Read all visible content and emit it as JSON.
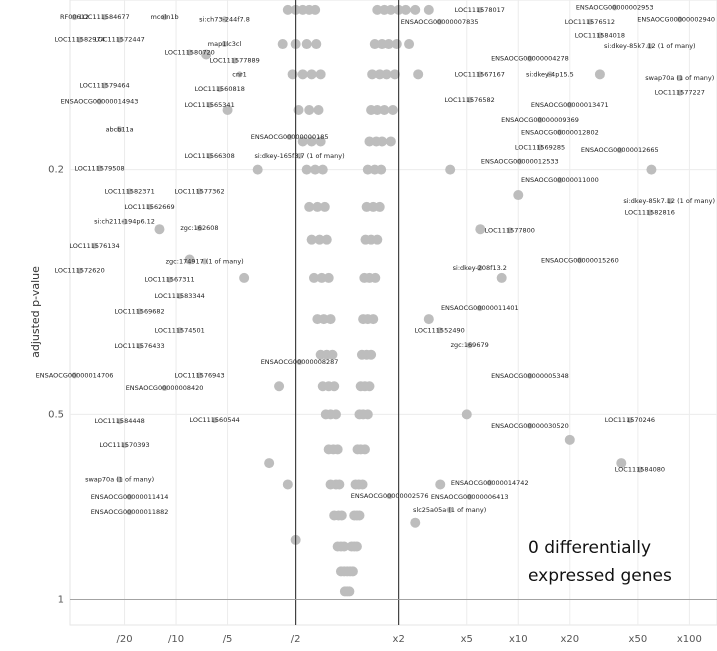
{
  "chart_data": {
    "type": "scatter",
    "x_log": true,
    "y_log": true,
    "y_reversed": true,
    "y_label": "adjusted p-value",
    "xlim": [
      0.024,
      145
    ],
    "ylim": [
      0.106,
      1.1
    ],
    "xticks": [
      {
        "value": 0.05,
        "label": "/20"
      },
      {
        "value": 0.1,
        "label": "/10"
      },
      {
        "value": 0.2,
        "label": "/5"
      },
      {
        "value": 0.5,
        "label": "/2"
      },
      {
        "value": 2,
        "label": "x2"
      },
      {
        "value": 5,
        "label": "x5"
      },
      {
        "value": 10,
        "label": "x10"
      },
      {
        "value": 20,
        "label": "x20"
      },
      {
        "value": 50,
        "label": "x50"
      },
      {
        "value": 100,
        "label": "x100"
      }
    ],
    "yticks": [
      0.2,
      0.5,
      1
    ],
    "grid": true,
    "color": "#bdbdbd",
    "vlines": [
      0.5,
      2
    ],
    "hline": 1,
    "annotation": [
      "0 differentially",
      "expressed genes"
    ],
    "x": [
      0.45,
      0.5,
      0.55,
      0.6,
      0.65,
      1.5,
      1.65,
      1.8,
      2.0,
      2.2,
      2.5,
      3,
      0.42,
      0.5,
      0.58,
      0.66,
      1.45,
      1.6,
      1.75,
      1.95,
      2.3,
      0.48,
      0.55,
      0.62,
      0.7,
      1.4,
      1.55,
      1.7,
      1.9,
      2.6,
      0.52,
      0.6,
      0.68,
      1.38,
      1.5,
      1.65,
      1.85,
      0.55,
      0.62,
      0.7,
      1.35,
      1.48,
      1.6,
      1.8,
      0.58,
      0.65,
      0.72,
      1.32,
      1.45,
      1.58,
      0.6,
      0.67,
      0.74,
      1.3,
      1.42,
      1.55,
      0.62,
      0.69,
      0.76,
      1.28,
      1.38,
      1.5,
      0.64,
      0.71,
      0.78,
      1.26,
      1.35,
      1.46,
      0.67,
      0.73,
      0.8,
      1.24,
      1.32,
      1.42,
      0.7,
      0.76,
      0.82,
      1.22,
      1.3,
      1.38,
      0.72,
      0.78,
      0.84,
      1.2,
      1.27,
      1.35,
      0.75,
      0.8,
      0.86,
      1.18,
      1.24,
      1.32,
      0.78,
      0.83,
      0.88,
      1.15,
      1.2,
      1.27,
      0.8,
      0.86,
      0.9,
      1.12,
      1.17,
      1.23,
      0.84,
      0.89,
      0.93,
      1.1,
      1.14,
      1.18,
      0.88,
      0.92,
      0.96,
      1.06,
      1.1,
      1.14,
      0.92,
      0.96,
      1.0,
      1.04,
      1.08,
      0.97,
      1.0,
      1.03,
      0.3,
      0.25,
      0.2,
      0.12,
      0.4,
      0.35,
      4,
      6,
      10,
      3,
      5,
      20,
      60,
      30,
      0.15,
      3.5,
      0.45,
      2.5,
      0.5,
      0.08,
      40,
      8
    ],
    "y": [
      0.11,
      0.11,
      0.11,
      0.11,
      0.11,
      0.11,
      0.11,
      0.11,
      0.11,
      0.11,
      0.11,
      0.11,
      0.125,
      0.125,
      0.125,
      0.125,
      0.125,
      0.125,
      0.125,
      0.125,
      0.125,
      0.14,
      0.14,
      0.14,
      0.14,
      0.14,
      0.14,
      0.14,
      0.14,
      0.14,
      0.16,
      0.16,
      0.16,
      0.16,
      0.16,
      0.16,
      0.16,
      0.18,
      0.18,
      0.18,
      0.18,
      0.18,
      0.18,
      0.18,
      0.2,
      0.2,
      0.2,
      0.2,
      0.2,
      0.2,
      0.23,
      0.23,
      0.23,
      0.23,
      0.23,
      0.23,
      0.26,
      0.26,
      0.26,
      0.26,
      0.26,
      0.26,
      0.3,
      0.3,
      0.3,
      0.3,
      0.3,
      0.3,
      0.35,
      0.35,
      0.35,
      0.35,
      0.35,
      0.35,
      0.4,
      0.4,
      0.4,
      0.4,
      0.4,
      0.4,
      0.45,
      0.45,
      0.45,
      0.45,
      0.45,
      0.45,
      0.5,
      0.5,
      0.5,
      0.5,
      0.5,
      0.5,
      0.57,
      0.57,
      0.57,
      0.57,
      0.57,
      0.57,
      0.65,
      0.65,
      0.65,
      0.65,
      0.65,
      0.65,
      0.73,
      0.73,
      0.73,
      0.73,
      0.73,
      0.73,
      0.82,
      0.82,
      0.82,
      0.82,
      0.82,
      0.82,
      0.9,
      0.9,
      0.9,
      0.9,
      0.9,
      0.97,
      0.97,
      0.97,
      0.2,
      0.3,
      0.16,
      0.28,
      0.45,
      0.6,
      0.2,
      0.25,
      0.22,
      0.35,
      0.5,
      0.55,
      0.2,
      0.14,
      0.13,
      0.65,
      0.65,
      0.75,
      0.8,
      0.25,
      0.6,
      0.3
    ],
    "labels": [
      {
        "text": "RF00612",
        "x": 0.0255,
        "y": 0.113
      },
      {
        "text": "LOC111584677",
        "x": 0.0382,
        "y": 0.113
      },
      {
        "text": "mcoln1b",
        "x": 0.0857,
        "y": 0.113
      },
      {
        "text": "si:ch73-244f7.8",
        "x": 0.192,
        "y": 0.114
      },
      {
        "text": "LOC111582974",
        "x": 0.0273,
        "y": 0.123
      },
      {
        "text": "LOC111572447",
        "x": 0.0468,
        "y": 0.123
      },
      {
        "text": "map1lc3cl",
        "x": 0.192,
        "y": 0.125
      },
      {
        "text": "LOC111580720",
        "x": 0.12,
        "y": 0.129
      },
      {
        "text": "LOC111577889",
        "x": 0.22,
        "y": 0.133
      },
      {
        "text": "LOC111579464",
        "x": 0.0382,
        "y": 0.146
      },
      {
        "text": "ENSAOCG00000014943",
        "x": 0.0357,
        "y": 0.155
      },
      {
        "text": "LOC111560818",
        "x": 0.18,
        "y": 0.148
      },
      {
        "text": "LOC111565341",
        "x": 0.157,
        "y": 0.157
      },
      {
        "text": "cnr1",
        "x": 0.235,
        "y": 0.14
      },
      {
        "text": "abcb11a",
        "x": 0.0468,
        "y": 0.172
      },
      {
        "text": "ENSAOCG00000000185",
        "x": 0.461,
        "y": 0.177
      },
      {
        "text": "LOC111566308",
        "x": 0.157,
        "y": 0.19
      },
      {
        "text": "si:dkey-165f3.7 (1 of many)",
        "x": 0.527,
        "y": 0.19
      },
      {
        "text": "LOC111579508",
        "x": 0.0357,
        "y": 0.199
      },
      {
        "text": "LOC111582371",
        "x": 0.0535,
        "y": 0.217
      },
      {
        "text": "LOC111577362",
        "x": 0.137,
        "y": 0.217
      },
      {
        "text": "LOC111562669",
        "x": 0.07,
        "y": 0.23
      },
      {
        "text": "si:ch211-194p6.12",
        "x": 0.05,
        "y": 0.243
      },
      {
        "text": "zgc:162608",
        "x": 0.137,
        "y": 0.249
      },
      {
        "text": "LOC111576134",
        "x": 0.0334,
        "y": 0.266
      },
      {
        "text": "zgc:174917 (1 of many)",
        "x": 0.147,
        "y": 0.282
      },
      {
        "text": "LOC111572620",
        "x": 0.0273,
        "y": 0.292
      },
      {
        "text": "LOC111567311",
        "x": 0.0916,
        "y": 0.302
      },
      {
        "text": "LOC111583344",
        "x": 0.105,
        "y": 0.321
      },
      {
        "text": "LOC111569682",
        "x": 0.0612,
        "y": 0.34
      },
      {
        "text": "LOC111574501",
        "x": 0.105,
        "y": 0.365
      },
      {
        "text": "LOC111576433",
        "x": 0.0612,
        "y": 0.387
      },
      {
        "text": "ENSAOCG00000014706",
        "x": 0.0255,
        "y": 0.432
      },
      {
        "text": "LOC111576943",
        "x": 0.137,
        "y": 0.432
      },
      {
        "text": "ENSAOCG00000008420",
        "x": 0.0857,
        "y": 0.453
      },
      {
        "text": "LOC111584448",
        "x": 0.0468,
        "y": 0.513
      },
      {
        "text": "LOC111560544",
        "x": 0.168,
        "y": 0.511
      },
      {
        "text": "LOC111570393",
        "x": 0.05,
        "y": 0.561
      },
      {
        "text": "swap70a (1 of many)",
        "x": 0.0468,
        "y": 0.638
      },
      {
        "text": "ENSAOCG00000011414",
        "x": 0.0535,
        "y": 0.681
      },
      {
        "text": "ENSAOCG00000011882",
        "x": 0.0535,
        "y": 0.721
      },
      {
        "text": "ENSAOCG00000008287",
        "x": 0.527,
        "y": 0.411
      },
      {
        "text": "LOC111578017",
        "x": 5.96,
        "y": 0.11
      },
      {
        "text": "ENSAOCG00000002953",
        "x": 36.6,
        "y": 0.109
      },
      {
        "text": "ENSAOCG00000007835",
        "x": 3.47,
        "y": 0.115
      },
      {
        "text": "LOC111576512",
        "x": 26.2,
        "y": 0.115
      },
      {
        "text": "ENSAOCG00000002940",
        "x": 87.9,
        "y": 0.114
      },
      {
        "text": "LOC111584018",
        "x": 30,
        "y": 0.121
      },
      {
        "text": "si:dkey-85k7.12 (1 of many)",
        "x": 58.7,
        "y": 0.126
      },
      {
        "text": "ENSAOCG00000004278",
        "x": 11.7,
        "y": 0.132
      },
      {
        "text": "si:dkey-4p15.5",
        "x": 15.3,
        "y": 0.14
      },
      {
        "text": "swap70a (1 of many)",
        "x": 87.9,
        "y": 0.142
      },
      {
        "text": "LOC111577227",
        "x": 87.9,
        "y": 0.15
      },
      {
        "text": "LOC111567167",
        "x": 5.96,
        "y": 0.14
      },
      {
        "text": "LOC111576582",
        "x": 5.2,
        "y": 0.154
      },
      {
        "text": "ENSAOCG00000013471",
        "x": 20,
        "y": 0.157
      },
      {
        "text": "ENSAOCG00000009369",
        "x": 13.4,
        "y": 0.166
      },
      {
        "text": "ENSAOCG00000012802",
        "x": 17.5,
        "y": 0.174
      },
      {
        "text": "LOC111569285",
        "x": 13.4,
        "y": 0.184
      },
      {
        "text": "ENSAOCG00000012665",
        "x": 39.2,
        "y": 0.186
      },
      {
        "text": "ENSAOCG00000012533",
        "x": 10.2,
        "y": 0.194
      },
      {
        "text": "ENSAOCG00000011000",
        "x": 17.5,
        "y": 0.208
      },
      {
        "text": "si:dkey-85k7.12 (1 of many)",
        "x": 76.9,
        "y": 0.225
      },
      {
        "text": "LOC111582816",
        "x": 58.7,
        "y": 0.235
      },
      {
        "text": "LOC111577800",
        "x": 8.92,
        "y": 0.251
      },
      {
        "text": "ENSAOCG00000015260",
        "x": 22.9,
        "y": 0.281
      },
      {
        "text": "si:dkey-208f13.2",
        "x": 5.96,
        "y": 0.289
      },
      {
        "text": "ENSAOCG00000011401",
        "x": 5.96,
        "y": 0.336
      },
      {
        "text": "LOC111552490",
        "x": 3.47,
        "y": 0.365
      },
      {
        "text": "zgc:169679",
        "x": 5.2,
        "y": 0.386
      },
      {
        "text": "ENSAOCG00000005348",
        "x": 11.7,
        "y": 0.433
      },
      {
        "text": "ENSAOCG00000030520",
        "x": 11.7,
        "y": 0.522
      },
      {
        "text": "LOC111570246",
        "x": 44.9,
        "y": 0.511
      },
      {
        "text": "LOC111584080",
        "x": 51.4,
        "y": 0.615
      },
      {
        "text": "ENSAOCG00000014742",
        "x": 6.81,
        "y": 0.646
      },
      {
        "text": "ENSAOCG00000006413",
        "x": 5.2,
        "y": 0.681
      },
      {
        "text": "slc25a05a (1 of many)",
        "x": 3.97,
        "y": 0.715
      },
      {
        "text": "ENSAOCG00000002576",
        "x": 1.77,
        "y": 0.679
      }
    ]
  }
}
